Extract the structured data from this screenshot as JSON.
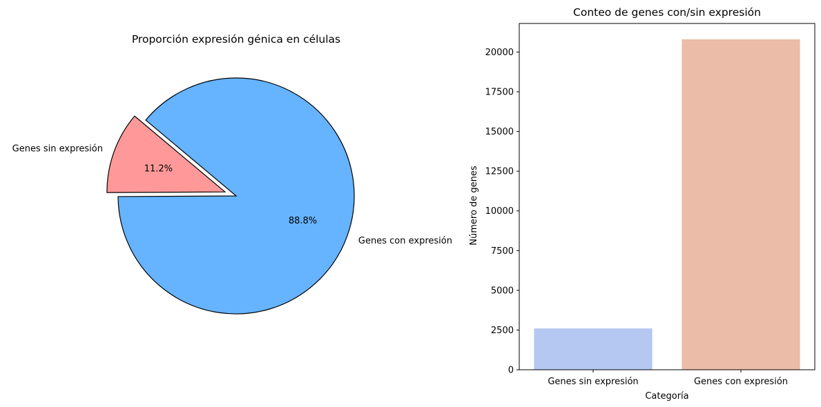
{
  "chart_data": [
    {
      "type": "pie",
      "title": "Proporción expresión génica en células",
      "slices": [
        {
          "label": "Genes sin expresión",
          "value": 11.2,
          "pct_label": "11.2%",
          "color": "#ff9999",
          "exploded": true
        },
        {
          "label": "Genes con expresión",
          "value": 88.8,
          "pct_label": "88.8%",
          "color": "#66b3ff",
          "exploded": false
        }
      ],
      "start_angle_deg": 140,
      "edge_color": "#000000"
    },
    {
      "type": "bar",
      "title": "Conteo de genes con/sin expresión",
      "categories": [
        "Genes sin expresión",
        "Genes con expresión"
      ],
      "values": [
        2600,
        20800
      ],
      "colors": [
        "#b5c8f2",
        "#ebbca7"
      ],
      "xlabel": "Categoría",
      "ylabel": "Número de genes",
      "ylim": [
        0,
        21800
      ],
      "yticks": [
        0,
        2500,
        5000,
        7500,
        10000,
        12500,
        15000,
        17500,
        20000
      ],
      "grid": false
    }
  ]
}
